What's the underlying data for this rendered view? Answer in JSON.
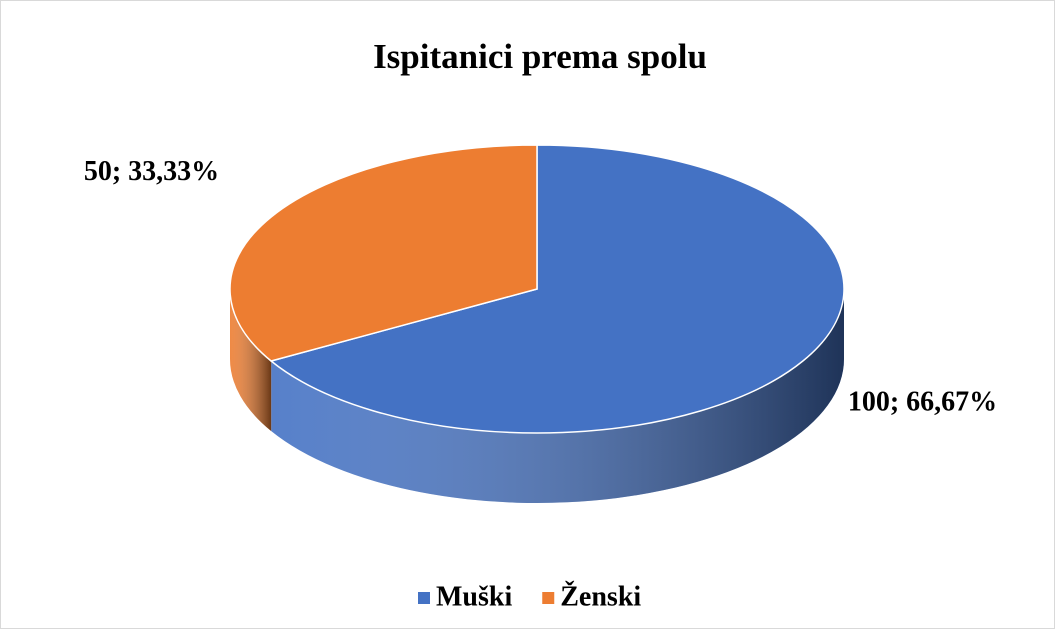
{
  "chart_data": {
    "type": "pie",
    "title": "Ispitanici prema spolu",
    "categories": [
      "Muški",
      "Ženski"
    ],
    "values": [
      100,
      50
    ],
    "value_labels": [
      "100; 66,67%",
      "50; 33,33%"
    ],
    "colors": [
      "#4472c4",
      "#ed7d31"
    ],
    "legend": "bottom"
  }
}
